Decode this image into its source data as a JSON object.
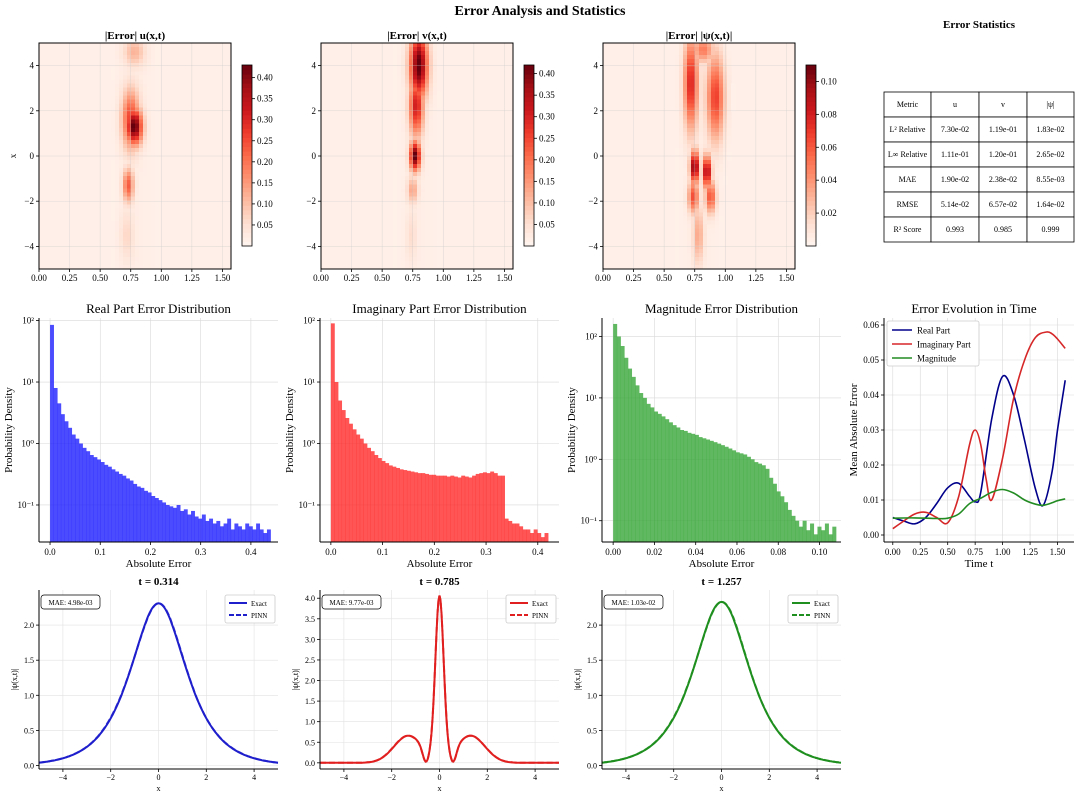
{
  "figure": {
    "title": "Error Analysis and Statistics"
  },
  "heatmaps": [
    {
      "title": "|Error| u(x,t)",
      "ylabel": "x",
      "vmax": 0.43,
      "cbar_ticks": [
        "0.05",
        "0.10",
        "0.15",
        "0.20",
        "0.25",
        "0.30",
        "0.35",
        "0.40"
      ],
      "cbar_values": [
        0.05,
        0.1,
        0.15,
        0.2,
        0.25,
        0.3,
        0.35,
        0.4
      ],
      "xticks": [
        "0.00",
        "0.25",
        "0.50",
        "0.75",
        "1.00",
        "1.25",
        "1.50"
      ],
      "xtick_values": [
        0,
        0.25,
        0.5,
        0.75,
        1.0,
        1.25,
        1.5
      ],
      "yticks": [
        "−4",
        "−2",
        "0",
        "2",
        "4"
      ],
      "ytick_values": [
        -4,
        -2,
        0,
        2,
        4
      ],
      "xlim": [
        0,
        1.57
      ],
      "ylim": [
        -5,
        5
      ],
      "blobs": [
        {
          "t": 0.78,
          "x": 1.3,
          "st": 0.045,
          "sx": 0.55,
          "a": 0.43
        },
        {
          "t": 0.75,
          "x": 1.6,
          "st": 0.05,
          "sx": 0.9,
          "a": 0.25
        },
        {
          "t": 0.73,
          "x": -1.3,
          "st": 0.03,
          "sx": 0.5,
          "a": 0.22
        },
        {
          "t": 0.78,
          "x": 4.6,
          "st": 0.06,
          "sx": 0.45,
          "a": 0.1
        },
        {
          "t": 0.72,
          "x": -3.5,
          "st": 0.04,
          "sx": 0.8,
          "a": 0.05
        }
      ]
    },
    {
      "title": "|Error| v(x,t)",
      "ylabel": "",
      "vmax": 0.42,
      "cbar_ticks": [
        "0.05",
        "0.10",
        "0.15",
        "0.20",
        "0.25",
        "0.30",
        "0.35",
        "0.40"
      ],
      "cbar_values": [
        0.05,
        0.1,
        0.15,
        0.2,
        0.25,
        0.3,
        0.35,
        0.4
      ],
      "xticks": [
        "0.00",
        "0.25",
        "0.50",
        "0.75",
        "1.00",
        "1.25",
        "1.50"
      ],
      "xtick_values": [
        0,
        0.25,
        0.5,
        0.75,
        1.0,
        1.25,
        1.5
      ],
      "yticks": [
        "−4",
        "−2",
        "0",
        "2",
        "4"
      ],
      "ytick_values": [
        -4,
        -2,
        0,
        2,
        4
      ],
      "xlim": [
        0,
        1.57
      ],
      "ylim": [
        -5,
        5
      ],
      "blobs": [
        {
          "t": 0.8,
          "x": 4.0,
          "st": 0.05,
          "sx": 1.0,
          "a": 0.42
        },
        {
          "t": 0.78,
          "x": 2.2,
          "st": 0.04,
          "sx": 0.9,
          "a": 0.3
        },
        {
          "t": 0.77,
          "x": 0.0,
          "st": 0.03,
          "sx": 0.45,
          "a": 0.42
        },
        {
          "t": 0.75,
          "x": -1.5,
          "st": 0.03,
          "sx": 0.4,
          "a": 0.12
        },
        {
          "t": 0.74,
          "x": -3.5,
          "st": 0.03,
          "sx": 0.8,
          "a": 0.04
        }
      ]
    },
    {
      "title": "|Error| |ψ(x,t)|",
      "ylabel": "",
      "vmax": 0.11,
      "cbar_ticks": [
        "0.02",
        "0.04",
        "0.06",
        "0.08",
        "0.10"
      ],
      "cbar_values": [
        0.02,
        0.04,
        0.06,
        0.08,
        0.1
      ],
      "xticks": [
        "0.00",
        "0.25",
        "0.50",
        "0.75",
        "1.00",
        "1.25",
        "1.50"
      ],
      "xtick_values": [
        0,
        0.25,
        0.5,
        0.75,
        1.0,
        1.25,
        1.5
      ],
      "yticks": [
        "−4",
        "−2",
        "0",
        "2",
        "4"
      ],
      "ytick_values": [
        -4,
        -2,
        0,
        2,
        4
      ],
      "xlim": [
        0,
        1.57
      ],
      "ylim": [
        -5,
        5
      ],
      "blobs": [
        {
          "t": 0.72,
          "x": 3.2,
          "st": 0.04,
          "sx": 1.4,
          "a": 0.075
        },
        {
          "t": 0.92,
          "x": 2.6,
          "st": 0.05,
          "sx": 1.3,
          "a": 0.065
        },
        {
          "t": 0.82,
          "x": 4.7,
          "st": 0.06,
          "sx": 0.4,
          "a": 0.045
        },
        {
          "t": 0.75,
          "x": -0.5,
          "st": 0.025,
          "sx": 0.5,
          "a": 0.105
        },
        {
          "t": 0.85,
          "x": -0.7,
          "st": 0.025,
          "sx": 0.5,
          "a": 0.095
        },
        {
          "t": 0.74,
          "x": -1.8,
          "st": 0.03,
          "sx": 0.5,
          "a": 0.06
        },
        {
          "t": 0.88,
          "x": -1.8,
          "st": 0.03,
          "sx": 0.5,
          "a": 0.06
        },
        {
          "t": 0.78,
          "x": -3.5,
          "st": 0.03,
          "sx": 0.9,
          "a": 0.03
        }
      ]
    }
  ],
  "stats_table": {
    "title": "Error Statistics",
    "headers": [
      "Metric",
      "u",
      "v",
      "|ψ|"
    ],
    "rows": [
      [
        "L² Relative",
        "7.30e-02",
        "1.19e-01",
        "1.83e-02"
      ],
      [
        "L∞ Relative",
        "1.11e-01",
        "1.20e-01",
        "2.65e-02"
      ],
      [
        "MAE",
        "1.90e-02",
        "2.38e-02",
        "8.55e-03"
      ],
      [
        "RMSE",
        "5.14e-02",
        "6.57e-02",
        "1.64e-02"
      ],
      [
        "R² Score",
        "0.993",
        "0.985",
        "0.999"
      ]
    ]
  },
  "chart_data": [
    {
      "type": "bar",
      "title": "Real Part Error Distribution",
      "xlabel": "Absolute Error",
      "ylabel": "Probability Density",
      "color": "#1f1fff",
      "yscale": "log",
      "ylim": [
        0.025,
        110
      ],
      "xlim": [
        -0.022,
        0.454
      ],
      "bin_start": 0.0,
      "bin_width": 0.0072,
      "xticks": [
        "0.0",
        "0.1",
        "0.2",
        "0.3",
        "0.4"
      ],
      "xtick_values": [
        0,
        0.1,
        0.2,
        0.3,
        0.4
      ],
      "yticks": [
        "10⁻¹",
        "10⁰",
        "10¹",
        "10²"
      ],
      "ytick_values": [
        0.1,
        1,
        10,
        100
      ],
      "values": [
        85,
        8,
        4.5,
        3,
        2.3,
        1.8,
        1.4,
        1.2,
        1.0,
        0.85,
        0.75,
        0.65,
        0.6,
        0.55,
        0.5,
        0.45,
        0.42,
        0.38,
        0.35,
        0.32,
        0.3,
        0.27,
        0.25,
        0.22,
        0.2,
        0.19,
        0.17,
        0.16,
        0.14,
        0.13,
        0.12,
        0.11,
        0.1,
        0.095,
        0.09,
        0.1,
        0.08,
        0.085,
        0.07,
        0.08,
        0.065,
        0.06,
        0.07,
        0.055,
        0.06,
        0.05,
        0.055,
        0.045,
        0.05,
        0.06,
        0.04,
        0.05,
        0.045,
        0.04,
        0.05,
        0.045,
        0.04,
        0.05,
        0.04,
        0.035,
        0.04
      ]
    },
    {
      "type": "bar",
      "title": "Imaginary Part Error Distribution",
      "xlabel": "Absolute Error",
      "ylabel": "Probability Density",
      "color": "#ff2b2b",
      "yscale": "log",
      "ylim": [
        0.025,
        110
      ],
      "xlim": [
        -0.021,
        0.441
      ],
      "bin_start": 0.0,
      "bin_width": 0.007,
      "xticks": [
        "0.0",
        "0.1",
        "0.2",
        "0.3",
        "0.4"
      ],
      "xtick_values": [
        0,
        0.1,
        0.2,
        0.3,
        0.4
      ],
      "yticks": [
        "10⁻¹",
        "10⁰",
        "10¹",
        "10²"
      ],
      "ytick_values": [
        0.1,
        1,
        10,
        100
      ],
      "values": [
        90,
        10,
        5,
        3.5,
        2.6,
        2.1,
        1.7,
        1.4,
        1.2,
        1.0,
        0.85,
        0.75,
        0.65,
        0.58,
        0.52,
        0.48,
        0.44,
        0.42,
        0.4,
        0.38,
        0.37,
        0.36,
        0.35,
        0.34,
        0.33,
        0.33,
        0.32,
        0.31,
        0.31,
        0.3,
        0.3,
        0.3,
        0.29,
        0.3,
        0.29,
        0.28,
        0.3,
        0.29,
        0.28,
        0.3,
        0.32,
        0.33,
        0.34,
        0.33,
        0.35,
        0.33,
        0.3,
        0.3,
        0.06,
        0.055,
        0.05,
        0.05,
        0.045,
        0.04,
        0.04,
        0.035,
        0.04,
        0.035,
        0.03,
        0.035
      ]
    },
    {
      "type": "bar",
      "title": "Magnitude Error Distribution",
      "xlabel": "Absolute Error",
      "ylabel": "Probability Density",
      "color": "#38a838",
      "yscale": "log",
      "ylim": [
        0.045,
        200
      ],
      "xlim": [
        -0.0054,
        0.1104
      ],
      "bin_start": 0.0,
      "bin_width": 0.0018,
      "xticks": [
        "0.00",
        "0.02",
        "0.04",
        "0.06",
        "0.08",
        "0.10"
      ],
      "xtick_values": [
        0,
        0.02,
        0.04,
        0.06,
        0.08,
        0.1
      ],
      "yticks": [
        "10⁻¹",
        "10⁰",
        "10¹",
        "10²"
      ],
      "ytick_values": [
        0.1,
        1,
        10,
        100
      ],
      "values": [
        160,
        100,
        70,
        45,
        30,
        22,
        16,
        12,
        10,
        8,
        7,
        6,
        5.5,
        5,
        4.5,
        4,
        3.6,
        3.3,
        3,
        2.9,
        2.7,
        2.6,
        2.5,
        2.3,
        2.2,
        2.1,
        2,
        1.9,
        1.8,
        1.7,
        1.6,
        1.5,
        1.4,
        1.3,
        1.25,
        1.2,
        1.1,
        1.0,
        0.9,
        0.85,
        0.8,
        0.7,
        0.5,
        0.4,
        0.3,
        0.25,
        0.2,
        0.15,
        0.12,
        0.1,
        0.08,
        0.1,
        0.07,
        0.09,
        0.06,
        0.08,
        0.07,
        0.09,
        0.06,
        0.08
      ]
    },
    {
      "type": "line",
      "title": "Error Evolution in Time",
      "xlabel": "Time t",
      "ylabel": "Mean Absolute Error",
      "xlim": [
        -0.08,
        1.65
      ],
      "ylim": [
        -0.002,
        0.062
      ],
      "xticks": [
        "0.00",
        "0.25",
        "0.50",
        "0.75",
        "1.00",
        "1.25",
        "1.50"
      ],
      "xtick_values": [
        0,
        0.25,
        0.5,
        0.75,
        1.0,
        1.25,
        1.5
      ],
      "yticks": [
        "0.00",
        "0.01",
        "0.02",
        "0.03",
        "0.04",
        "0.05",
        "0.06"
      ],
      "ytick_values": [
        0,
        0.01,
        0.02,
        0.03,
        0.04,
        0.05,
        0.06
      ],
      "legend_location": "upper-left",
      "series": [
        {
          "name": "Real Part",
          "color": "#00008b",
          "x": [
            0,
            0.1,
            0.2,
            0.3,
            0.4,
            0.5,
            0.6,
            0.7,
            0.75,
            0.8,
            0.9,
            1.0,
            1.1,
            1.2,
            1.3,
            1.37,
            1.45,
            1.5,
            1.57
          ],
          "y": [
            0.005,
            0.004,
            0.0032,
            0.005,
            0.009,
            0.0135,
            0.0148,
            0.011,
            0.0095,
            0.012,
            0.033,
            0.0453,
            0.04,
            0.027,
            0.013,
            0.0085,
            0.018,
            0.03,
            0.0442
          ]
        },
        {
          "name": "Imaginary Part",
          "color": "#d62728",
          "x": [
            0,
            0.1,
            0.2,
            0.3,
            0.4,
            0.5,
            0.6,
            0.7,
            0.75,
            0.8,
            0.85,
            0.9,
            1.0,
            1.1,
            1.2,
            1.3,
            1.4,
            1.45,
            1.5,
            1.57
          ],
          "y": [
            0.0018,
            0.004,
            0.006,
            0.0065,
            0.005,
            0.0035,
            0.011,
            0.026,
            0.03,
            0.026,
            0.016,
            0.01,
            0.022,
            0.039,
            0.05,
            0.0565,
            0.058,
            0.0575,
            0.056,
            0.0533
          ]
        },
        {
          "name": "Magnitude",
          "color": "#228b22",
          "x": [
            0,
            0.2,
            0.4,
            0.5,
            0.6,
            0.7,
            0.8,
            0.9,
            1.0,
            1.1,
            1.2,
            1.3,
            1.37,
            1.45,
            1.5,
            1.57
          ],
          "y": [
            0.0048,
            0.0049,
            0.0047,
            0.0048,
            0.006,
            0.009,
            0.0105,
            0.0122,
            0.013,
            0.012,
            0.01,
            0.0088,
            0.0085,
            0.0092,
            0.0098,
            0.0103
          ]
        }
      ]
    },
    {
      "type": "line",
      "title": "t = 0.314",
      "xlabel": "x",
      "ylabel": "|ψ(x,t)|",
      "annotation": "MAE: 4.98e-03",
      "color": "#1f1fcc",
      "profile": "sech",
      "peak": 2.31,
      "width": 1.05,
      "xlim": [
        -5,
        5
      ],
      "ylim": [
        -0.05,
        2.5
      ],
      "xticks": [
        "−4",
        "−2",
        "0",
        "2",
        "4"
      ],
      "xtick_values": [
        -4,
        -2,
        0,
        2,
        4
      ],
      "yticks": [
        "0.0",
        "0.5",
        "1.0",
        "1.5",
        "2.0"
      ],
      "ytick_values": [
        0,
        0.5,
        1,
        1.5,
        2
      ],
      "series": [
        {
          "name": "Exact",
          "style": "solid"
        },
        {
          "name": "PINN",
          "style": "dashed"
        }
      ]
    },
    {
      "type": "line",
      "title": "t = 0.785",
      "xlabel": "x",
      "ylabel": "|ψ(x,t)|",
      "annotation": "MAE: 9.77e-03",
      "color": "#e02020",
      "profile": "breather",
      "xlim": [
        -5,
        5
      ],
      "ylim": [
        -0.15,
        4.2
      ],
      "xticks": [
        "−4",
        "−2",
        "0",
        "2",
        "4"
      ],
      "xtick_values": [
        -4,
        -2,
        0,
        2,
        4
      ],
      "yticks": [
        "0.0",
        "0.5",
        "1.0",
        "1.5",
        "2.0",
        "2.5",
        "3.0",
        "3.5",
        "4.0"
      ],
      "ytick_values": [
        0,
        0.5,
        1,
        1.5,
        2,
        2.5,
        3,
        3.5,
        4
      ],
      "series": [
        {
          "name": "Exact",
          "style": "solid"
        },
        {
          "name": "PINN",
          "style": "dashed"
        }
      ]
    },
    {
      "type": "line",
      "title": "t = 1.257",
      "xlabel": "x",
      "ylabel": "|ψ(x,t)|",
      "annotation": "MAE: 1.03e-02",
      "color": "#1f8f1f",
      "profile": "sech",
      "peak": 2.33,
      "width": 1.05,
      "xlim": [
        -5,
        5
      ],
      "ylim": [
        -0.05,
        2.5
      ],
      "xticks": [
        "−4",
        "−2",
        "0",
        "2",
        "4"
      ],
      "xtick_values": [
        -4,
        -2,
        0,
        2,
        4
      ],
      "yticks": [
        "0.0",
        "0.5",
        "1.0",
        "1.5",
        "2.0"
      ],
      "ytick_values": [
        0,
        0.5,
        1,
        1.5,
        2
      ],
      "series": [
        {
          "name": "Exact",
          "style": "solid"
        },
        {
          "name": "PINN",
          "style": "dashed"
        }
      ]
    }
  ]
}
